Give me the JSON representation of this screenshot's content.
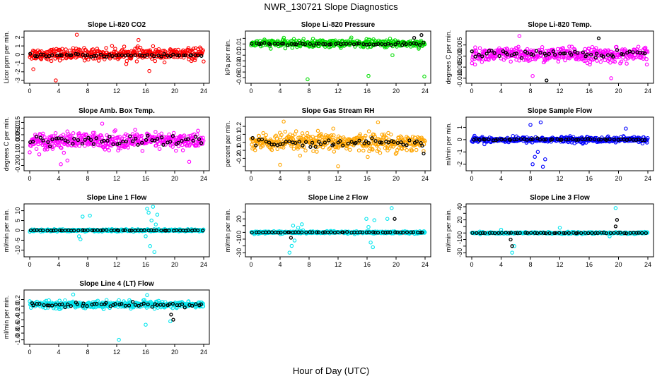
{
  "page": {
    "title": "NWR_130721  Slope Diagnostics",
    "xlabel": "Hour of Day (UTC)"
  },
  "chart_data": [
    {
      "type": "scatter",
      "title": "Slope Li-820 CO2",
      "ylabel": "Licor ppm per min.",
      "xlim": [
        0,
        24
      ],
      "ylim": [
        -3,
        2.4
      ],
      "yticks": [
        -3,
        -2,
        -1,
        0,
        1,
        2
      ],
      "xticks": [
        0,
        4,
        8,
        12,
        16,
        20,
        24
      ],
      "series": [
        {
          "name": "",
          "color": "#ff0000",
          "n": 420,
          "center": 0.05,
          "spread": 0.6,
          "outliers": [
            [
              3.6,
              -3.0
            ],
            [
              6.5,
              2.3
            ],
            [
              16.5,
              -1.9
            ],
            [
              0.5,
              -1.7
            ],
            [
              15.0,
              1.7
            ]
          ]
        },
        {
          "name": "",
          "color": "#000000",
          "n": 55,
          "center": -0.1,
          "spread": 0.15,
          "outliers": []
        }
      ]
    },
    {
      "type": "scatter",
      "title": "Slope Li-820 Pressure",
      "ylabel": "kPa per min.",
      "xlim": [
        0,
        24
      ],
      "ylim": [
        -0.055,
        0.028
      ],
      "yticks": [
        -0.05,
        -0.04,
        -0.03,
        -0.02,
        -0.01,
        0,
        0.01,
        0.02
      ],
      "ytick_labels": [
        "-0.05",
        "",
        "-0.03",
        "",
        "-0.01",
        "",
        "0.01",
        ""
      ],
      "xticks": [
        0,
        4,
        8,
        12,
        16,
        20,
        24
      ],
      "series": [
        {
          "name": "",
          "color": "#00dd00",
          "n": 420,
          "center": 0.011,
          "spread": 0.006,
          "outliers": [
            [
              7.8,
              -0.053
            ],
            [
              16.2,
              -0.047
            ],
            [
              23.9,
              -0.048
            ],
            [
              8.5,
              0.005
            ],
            [
              19.5,
              -0.01
            ]
          ]
        },
        {
          "name": "",
          "color": "#000000",
          "n": 55,
          "center": 0.01,
          "spread": 0.002,
          "outliers": [
            [
              23.5,
              0.026
            ],
            [
              22.5,
              0.021
            ]
          ]
        }
      ]
    },
    {
      "type": "scatter",
      "title": "Slope Li-820 Temp.",
      "ylabel": "degrees C per min.",
      "xlim": [
        0,
        24
      ],
      "ylim": [
        -0.011,
        0.01
      ],
      "yticks": [
        -0.01,
        -0.005,
        0,
        0.005
      ],
      "ytick_labels": [
        "-0.010",
        "-0.005",
        "0.000",
        "0.005"
      ],
      "xticks": [
        0,
        4,
        8,
        12,
        16,
        20,
        24
      ],
      "series": [
        {
          "name": "",
          "color": "#ff00ff",
          "n": 420,
          "center": 0.0005,
          "spread": 0.003,
          "outliers": [
            [
              6.5,
              0.009
            ],
            [
              8.3,
              -0.009
            ],
            [
              19.0,
              -0.01
            ]
          ]
        },
        {
          "name": "",
          "color": "#000000",
          "n": 55,
          "center": 0.001,
          "spread": 0.0015,
          "outliers": [
            [
              10.2,
              -0.011
            ],
            [
              17.3,
              0.008
            ]
          ]
        }
      ]
    },
    {
      "type": "scatter",
      "title": "Slope Amb. Box Temp.",
      "ylabel": "degrees C per min.",
      "xlim": [
        0,
        24
      ],
      "ylim": [
        -0.22,
        0.17
      ],
      "yticks": [
        -0.2,
        -0.15,
        -0.1,
        -0.05,
        0,
        0.05,
        0.1,
        0.15
      ],
      "ytick_labels": [
        "-0.20",
        "",
        "-0.10",
        "",
        "0.00",
        "0.05",
        "0.10",
        "0.15"
      ],
      "xticks": [
        0,
        4,
        8,
        12,
        16,
        20,
        24
      ],
      "series": [
        {
          "name": "",
          "color": "#ff00ff",
          "n": 420,
          "center": 0.0,
          "spread": 0.06,
          "outliers": [
            [
              4.3,
              -0.19
            ],
            [
              5.2,
              -0.16
            ],
            [
              10.0,
              0.14
            ],
            [
              22.0,
              -0.17
            ]
          ]
        },
        {
          "name": "",
          "color": "#000000",
          "n": 55,
          "center": 0.0,
          "spread": 0.04,
          "outliers": []
        }
      ]
    },
    {
      "type": "scatter",
      "title": "Slope Gas Stream RH",
      "ylabel": "percent per min.",
      "xlim": [
        0,
        24
      ],
      "ylim": [
        -0.32,
        0.28
      ],
      "yticks": [
        -0.3,
        -0.2,
        -0.1,
        0,
        0.1,
        0.2
      ],
      "ytick_labels": [
        "",
        "-0.2",
        "-0.1",
        "0.0",
        "0.1",
        "0.2"
      ],
      "xticks": [
        0,
        4,
        8,
        12,
        16,
        20,
        24
      ],
      "series": [
        {
          "name": "",
          "color": "#ffa500",
          "n": 420,
          "center": 0.0,
          "spread": 0.1,
          "outliers": [
            [
              12.0,
              -0.3
            ],
            [
              4.5,
              0.26
            ],
            [
              17.5,
              0.25
            ],
            [
              4.0,
              -0.28
            ]
          ]
        },
        {
          "name": "",
          "color": "#000000",
          "n": 55,
          "center": 0.0,
          "spread": 0.04,
          "outliers": [
            [
              23.8,
              -0.14
            ]
          ]
        }
      ]
    },
    {
      "type": "scatter",
      "title": "Slope Sample Flow",
      "ylabel": "ml/min per min.",
      "xlim": [
        0,
        24
      ],
      "ylim": [
        -2.3,
        1.6
      ],
      "yticks": [
        -2,
        -1,
        0,
        1
      ],
      "xticks": [
        0,
        4,
        8,
        12,
        16,
        20,
        24
      ],
      "series": [
        {
          "name": "",
          "color": "#0000ff",
          "n": 420,
          "center": 0.0,
          "spread": 0.2,
          "outliers": [
            [
              8.3,
              -2.0
            ],
            [
              8.6,
              -1.4
            ],
            [
              9.4,
              1.4
            ],
            [
              9.7,
              -2.2
            ],
            [
              9.0,
              -1.0
            ],
            [
              8.0,
              1.2
            ],
            [
              21.0,
              0.9
            ],
            [
              10.0,
              -1.6
            ]
          ]
        },
        {
          "name": "",
          "color": "#000000",
          "n": 55,
          "center": 0.0,
          "spread": 0.06,
          "outliers": []
        }
      ]
    },
    {
      "type": "scatter",
      "title": "Slope Line 1 Flow",
      "ylabel": "ml/min per min.",
      "xlim": [
        0,
        24
      ],
      "ylim": [
        -12,
        12
      ],
      "yticks": [
        -10,
        -5,
        0,
        5,
        10
      ],
      "ytick_labels": [
        "-10",
        "-5",
        "0",
        "5",
        "10"
      ],
      "xticks": [
        0,
        4,
        8,
        12,
        16,
        20,
        24
      ],
      "series": [
        {
          "name": "",
          "color": "#00e5ee",
          "n": 420,
          "center": 0.0,
          "spread": 0.5,
          "outliers": [
            [
              7.3,
              7
            ],
            [
              8.3,
              7.5
            ],
            [
              6.8,
              -3
            ],
            [
              7.0,
              -4.5
            ],
            [
              16.2,
              11
            ],
            [
              16.4,
              9
            ],
            [
              17.0,
              12
            ],
            [
              16.6,
              -8
            ],
            [
              17.2,
              -11
            ],
            [
              16.8,
              5
            ],
            [
              17.6,
              8
            ],
            [
              16.0,
              -3
            ],
            [
              17.4,
              3
            ]
          ]
        },
        {
          "name": "",
          "color": "#000000",
          "n": 55,
          "center": 0.0,
          "spread": 0.15,
          "outliers": []
        }
      ]
    },
    {
      "type": "scatter",
      "title": "Slope Line 2 Flow",
      "ylabel": "ml/min per min.",
      "xlim": [
        0,
        24
      ],
      "ylim": [
        -32,
        38
      ],
      "yticks": [
        -30,
        -20,
        -10,
        0,
        10,
        20,
        30
      ],
      "ytick_labels": [
        "-30",
        "",
        "-10",
        "0",
        "",
        "20",
        ""
      ],
      "xticks": [
        0,
        4,
        8,
        12,
        16,
        20,
        24
      ],
      "series": [
        {
          "name": "",
          "color": "#00e5ee",
          "n": 420,
          "center": 0.0,
          "spread": 1.5,
          "outliers": [
            [
              5.3,
              -30
            ],
            [
              5.6,
              -20
            ],
            [
              6.0,
              -12
            ],
            [
              6.5,
              7
            ],
            [
              7.0,
              12
            ],
            [
              5.8,
              10
            ],
            [
              15.9,
              20
            ],
            [
              16.2,
              8
            ],
            [
              16.5,
              -15
            ],
            [
              16.8,
              -22
            ],
            [
              17.0,
              18
            ],
            [
              18.8,
              20
            ],
            [
              19.4,
              36
            ]
          ]
        },
        {
          "name": "",
          "color": "#000000",
          "n": 55,
          "center": 0.0,
          "spread": 0.4,
          "outliers": [
            [
              5.5,
              -8
            ],
            [
              19.8,
              20
            ]
          ]
        }
      ]
    },
    {
      "type": "scatter",
      "title": "Slope Line 3 Flow",
      "ylabel": "ml/min per min.",
      "xlim": [
        0,
        24
      ],
      "ylim": [
        -32,
        40
      ],
      "yticks": [
        -30,
        -20,
        -10,
        0,
        10,
        20,
        30,
        40
      ],
      "ytick_labels": [
        "-30",
        "",
        "-10",
        "0",
        "",
        "20",
        "",
        "40"
      ],
      "xticks": [
        0,
        4,
        8,
        12,
        16,
        20,
        24
      ],
      "series": [
        {
          "name": "",
          "color": "#00e5ee",
          "n": 420,
          "center": 0.0,
          "spread": 1.2,
          "outliers": [
            [
              5.5,
              -30
            ],
            [
              5.8,
              -20
            ],
            [
              4.0,
              5
            ],
            [
              12.0,
              8
            ],
            [
              19.6,
              38
            ],
            [
              18.8,
              -5
            ]
          ]
        },
        {
          "name": "",
          "color": "#000000",
          "n": 55,
          "center": 0.0,
          "spread": 0.4,
          "outliers": [
            [
              5.3,
              -10
            ],
            [
              5.5,
              -20
            ],
            [
              19.8,
              20
            ],
            [
              19.6,
              10
            ]
          ]
        }
      ]
    },
    {
      "type": "scatter",
      "title": "Slope Line 4 (LT) Flow",
      "ylabel": "ml/min per min.",
      "xlim": [
        0,
        24
      ],
      "ylim": [
        -1.05,
        0.4
      ],
      "yticks": [
        -1,
        -0.8,
        -0.6,
        -0.4,
        -0.2,
        0,
        0.2
      ],
      "ytick_labels": [
        "-1.0",
        "-0.8",
        "-0.6",
        "-0.4",
        "-0.2",
        "0.0",
        "0.2"
      ],
      "xticks": [
        0,
        4,
        8,
        12,
        16,
        20,
        24
      ],
      "series": [
        {
          "name": "",
          "color": "#00e5ee",
          "n": 420,
          "center": 0.05,
          "spread": 0.09,
          "outliers": [
            [
              12.3,
              -1.0
            ],
            [
              16.0,
              -0.55
            ],
            [
              6.0,
              0.35
            ],
            [
              16.2,
              0.33
            ],
            [
              19.4,
              -0.45
            ]
          ]
        },
        {
          "name": "",
          "color": "#000000",
          "n": 55,
          "center": 0.05,
          "spread": 0.06,
          "outliers": [
            [
              19.8,
              -0.4
            ],
            [
              19.5,
              -0.25
            ]
          ]
        }
      ]
    }
  ]
}
